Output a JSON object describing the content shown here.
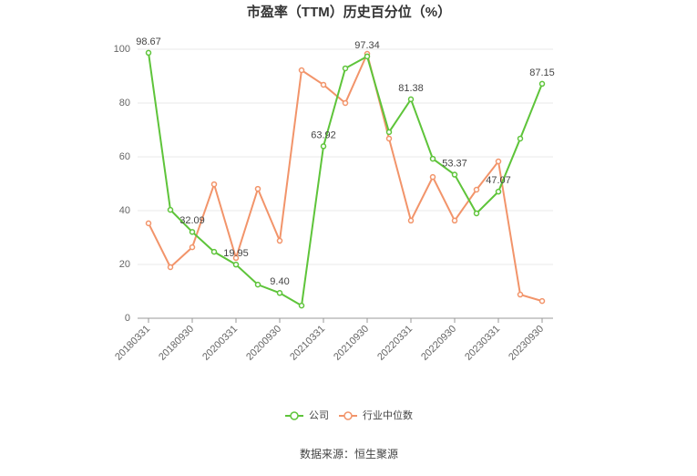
{
  "chart_data": {
    "type": "line",
    "title": "市盈率（TTM）历史百分位（%）",
    "categories": [
      "20180331",
      null,
      "20180930",
      null,
      "20200331",
      null,
      "20200930",
      null,
      "20210331",
      null,
      "20210930",
      null,
      "20220331",
      null,
      "20220930",
      null,
      "20230331",
      null,
      "20230930"
    ],
    "series": [
      {
        "name": "公司",
        "color": "#5ec43a",
        "values": [
          98.67,
          40.3,
          32.09,
          24.7,
          19.95,
          12.5,
          9.4,
          4.7,
          63.92,
          92.9,
          97.34,
          69.2,
          81.38,
          59.3,
          53.37,
          39.0,
          47.07,
          66.8,
          87.15
        ],
        "value_labels": [
          "98.67",
          null,
          "32.09",
          null,
          "19.95",
          null,
          "9.40",
          null,
          "63.92",
          null,
          "97.34",
          null,
          "81.38",
          null,
          "53.37",
          null,
          "47.07",
          null,
          "87.15"
        ]
      },
      {
        "name": "行业中位数",
        "color": "#f2946a",
        "values": [
          35.3,
          19.0,
          26.4,
          49.8,
          22.4,
          48.1,
          28.8,
          92.2,
          86.8,
          80.0,
          98.3,
          66.8,
          36.3,
          52.5,
          36.3,
          47.8,
          58.3,
          8.8,
          6.4
        ]
      }
    ],
    "ylim": [
      0,
      100
    ],
    "yticks": [
      0,
      20,
      40,
      60,
      80,
      100
    ],
    "grid": true,
    "source": "数据来源：恒生聚源"
  }
}
